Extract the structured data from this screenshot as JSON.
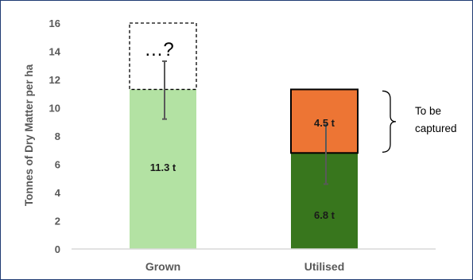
{
  "chart_data": {
    "type": "bar",
    "stacked": true,
    "categories": [
      "Grown",
      "Utilised"
    ],
    "ylabel": "Tonnes of  Dry Matter per ha",
    "xlabel": "",
    "title": "",
    "ylim": [
      0,
      16
    ],
    "yticks": [
      0,
      2,
      4,
      6,
      8,
      10,
      12,
      14,
      16
    ],
    "grid": false,
    "legend": "none",
    "bars": [
      {
        "category": "Grown",
        "segments": [
          {
            "value": 11.3,
            "label": "11.3 t",
            "color": "#b3e2a3",
            "border": false
          }
        ],
        "potential": {
          "from": 11.3,
          "to": 16,
          "label": "…?",
          "style": "dashed-outline"
        },
        "error_bar": {
          "low": 9.2,
          "high": 13.3
        }
      },
      {
        "category": "Utilised",
        "segments": [
          {
            "value": 6.8,
            "label": "6.8 t",
            "color": "#38761d",
            "border": false
          },
          {
            "value": 4.5,
            "label": "4.5 t",
            "color": "#ed7534",
            "border": true
          }
        ],
        "error_bar": {
          "low": 4.6,
          "high": 8.8
        }
      }
    ],
    "annotation": {
      "text_lines": [
        "To be",
        "captured"
      ],
      "bracket_from": 6.8,
      "bracket_to": 11.3
    },
    "colors": {
      "axis": "#d9d9d9",
      "error_bar": "#595959",
      "frame": "#1f3b73"
    }
  }
}
